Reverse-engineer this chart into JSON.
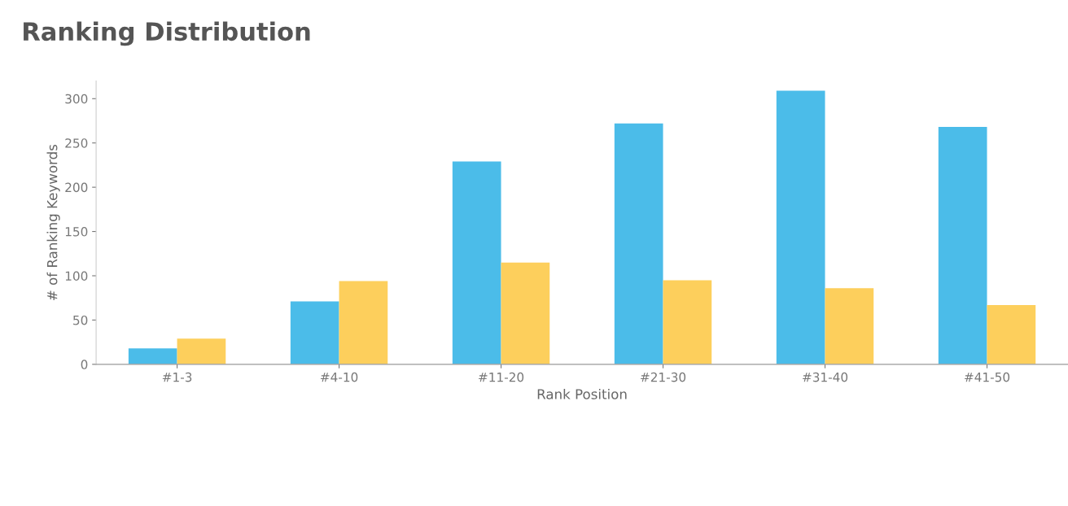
{
  "chart_data": {
    "type": "bar",
    "title": "Ranking Distribution",
    "xlabel": "Rank Position",
    "ylabel": "# of Ranking Keywords",
    "categories": [
      "#1-3",
      "#4-10",
      "#11-20",
      "#21-30",
      "#31-40",
      "#41-50"
    ],
    "series": [
      {
        "color": "#4bbce9",
        "values": [
          18,
          71,
          229,
          272,
          309,
          268
        ]
      },
      {
        "color": "#fdcf5c",
        "values": [
          29,
          94,
          115,
          95,
          86,
          67
        ]
      }
    ],
    "ylim": [
      0,
      320
    ],
    "yticks": [
      0,
      50,
      100,
      150,
      200,
      250,
      300
    ],
    "grid": false,
    "legend": false
  }
}
